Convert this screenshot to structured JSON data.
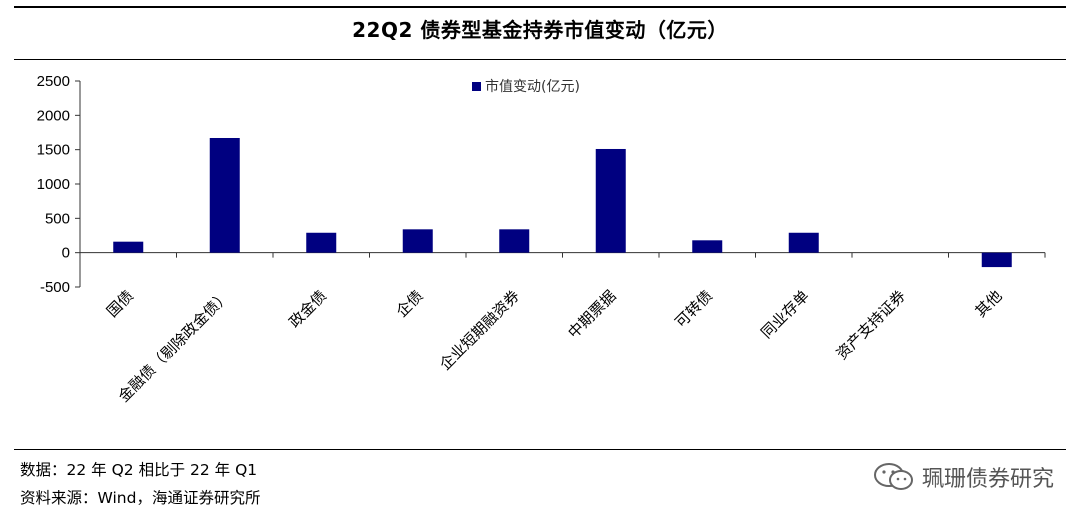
{
  "title": "22Q2 债券型基金持券市值变动（亿元）",
  "footer": {
    "note": "数据：22 年 Q2 相比于 22 年 Q1",
    "source": "资料来源：Wind，海通证券研究所"
  },
  "watermark": {
    "text": "珮珊债券研究",
    "icon": "wechat-icon"
  },
  "chart_data": {
    "type": "bar",
    "title": "22Q2 债券型基金持券市值变动（亿元）",
    "categories": [
      "国债",
      "金融债（剔除政金债）",
      "政金债",
      "企债",
      "企业短期融资券",
      "中期票据",
      "可转债",
      "同业存单",
      "资产支持证券",
      "其他"
    ],
    "series": [
      {
        "name": "市值变动(亿元)",
        "values": [
          160,
          1670,
          290,
          340,
          340,
          1510,
          180,
          290,
          0,
          -210
        ],
        "color": "#000080"
      }
    ],
    "yticks": [
      2500,
      2000,
      1500,
      1000,
      500,
      0,
      -500
    ],
    "ylim": [
      -500,
      2500
    ],
    "grid": false,
    "legend_position": "top-center",
    "xlabel": "",
    "ylabel": ""
  }
}
